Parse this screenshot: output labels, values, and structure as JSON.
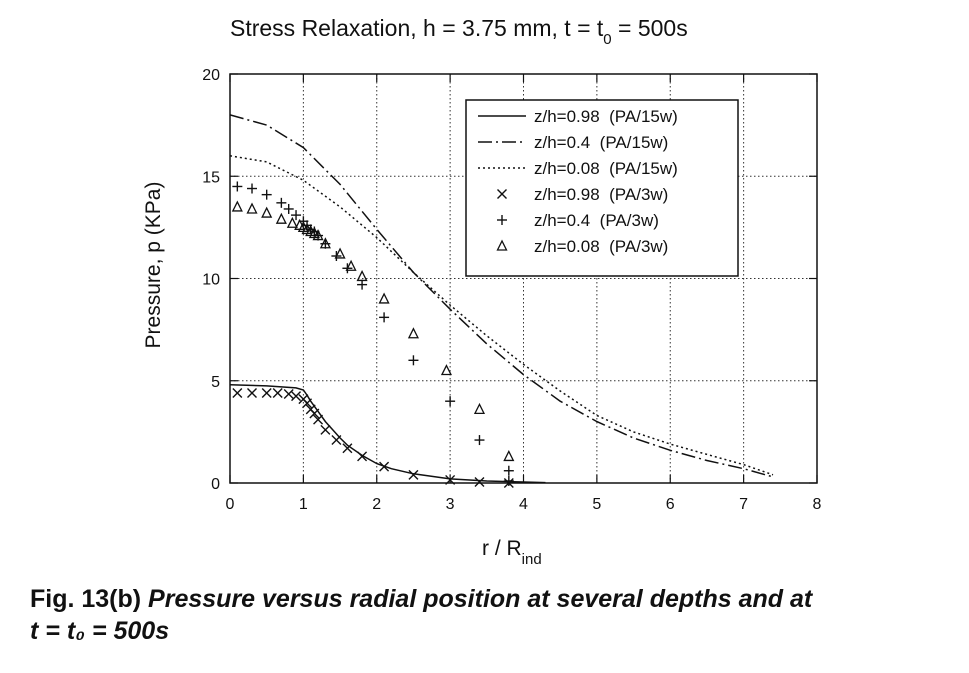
{
  "chart_data": {
    "type": "line",
    "title": "Stress  Relaxation, h = 3.75  mm, t = t",
    "title_sub": "0",
    "title_tail": " = 500s",
    "xlabel": "r / R",
    "xlabel_sub": "ind",
    "ylabel": "Pressure, p (KPa)",
    "xlim": [
      0,
      8
    ],
    "ylim": [
      0,
      20
    ],
    "xticks": [
      "0",
      "1",
      "2",
      "3",
      "4",
      "5",
      "6",
      "7",
      "8"
    ],
    "yticks": [
      "0",
      "5",
      "10",
      "15",
      "20"
    ],
    "grid": true,
    "legend_position": "top-right",
    "series": [
      {
        "name": "z/h=0.98  (PA/15w)",
        "style": "solid",
        "x": [
          0,
          0.5,
          0.9,
          1.0,
          1.05,
          1.1,
          1.2,
          1.3,
          1.4,
          1.5,
          1.6,
          1.8,
          2.0,
          2.2,
          2.5,
          3.0,
          3.5,
          4.0,
          4.3
        ],
        "y": [
          4.8,
          4.75,
          4.65,
          4.55,
          4.3,
          4.0,
          3.5,
          3.0,
          2.6,
          2.2,
          1.85,
          1.35,
          0.95,
          0.7,
          0.45,
          0.2,
          0.1,
          0.05,
          0.02
        ]
      },
      {
        "name": "z/h=0.4  (PA/15w)",
        "style": "dashdot",
        "x": [
          0,
          0.5,
          1.0,
          1.5,
          2.0,
          2.5,
          3.0,
          3.5,
          4.0,
          4.5,
          5.0,
          5.5,
          6.0,
          6.5,
          7.0,
          7.4
        ],
        "y": [
          18.0,
          17.5,
          16.4,
          14.6,
          12.4,
          10.3,
          8.5,
          6.8,
          5.3,
          4.0,
          3.0,
          2.2,
          1.6,
          1.1,
          0.7,
          0.3
        ]
      },
      {
        "name": "z/h=0.08  (PA/15w)",
        "style": "dotted",
        "x": [
          0,
          0.5,
          1.0,
          1.5,
          2.0,
          2.5,
          3.0,
          3.5,
          4.0,
          4.5,
          5.0,
          5.5,
          6.0,
          6.5,
          7.0,
          7.4
        ],
        "y": [
          16.0,
          15.7,
          14.8,
          13.5,
          12.0,
          10.3,
          8.7,
          7.2,
          5.8,
          4.5,
          3.3,
          2.5,
          1.9,
          1.4,
          0.9,
          0.4
        ]
      },
      {
        "name": "z/h=0.98  (PA/3w)",
        "marker": "x",
        "x": [
          0.1,
          0.3,
          0.5,
          0.65,
          0.8,
          0.9,
          1.0,
          1.05,
          1.1,
          1.15,
          1.2,
          1.3,
          1.45,
          1.6,
          1.8,
          2.1,
          2.5,
          3.0,
          3.4,
          3.8
        ],
        "y": [
          4.4,
          4.4,
          4.4,
          4.4,
          4.35,
          4.25,
          4.1,
          3.9,
          3.6,
          3.4,
          3.1,
          2.6,
          2.1,
          1.7,
          1.3,
          0.8,
          0.4,
          0.15,
          0.05,
          0.0
        ]
      },
      {
        "name": "z/h=0.4  (PA/3w)",
        "marker": "+",
        "x": [
          0.1,
          0.3,
          0.5,
          0.7,
          0.8,
          0.9,
          1.0,
          1.05,
          1.1,
          1.15,
          1.2,
          1.3,
          1.45,
          1.6,
          1.8,
          2.1,
          2.5,
          3.0,
          3.4,
          3.8,
          3.8
        ],
        "y": [
          14.5,
          14.4,
          14.1,
          13.7,
          13.4,
          13.1,
          12.8,
          12.6,
          12.4,
          12.3,
          12.1,
          11.7,
          11.1,
          10.5,
          9.7,
          8.1,
          6.0,
          4.0,
          2.1,
          0.6,
          0.1
        ]
      },
      {
        "name": "z/h=0.08  (PA/3w)",
        "marker": "triangle",
        "x": [
          0.1,
          0.3,
          0.5,
          0.7,
          0.85,
          0.95,
          1.0,
          1.05,
          1.1,
          1.15,
          1.2,
          1.3,
          1.5,
          1.65,
          1.8,
          2.1,
          2.5,
          2.95,
          3.4,
          3.8
        ],
        "y": [
          13.5,
          13.4,
          13.2,
          12.9,
          12.7,
          12.6,
          12.5,
          12.4,
          12.3,
          12.2,
          12.1,
          11.7,
          11.2,
          10.6,
          10.1,
          9.0,
          7.3,
          5.5,
          3.6,
          1.3
        ]
      }
    ]
  },
  "caption": {
    "line1_label": "Fig. 13(b)",
    "line1_text": "  Pressure versus radial position at several depths and at",
    "line2": "t = t₀ = 500s"
  }
}
